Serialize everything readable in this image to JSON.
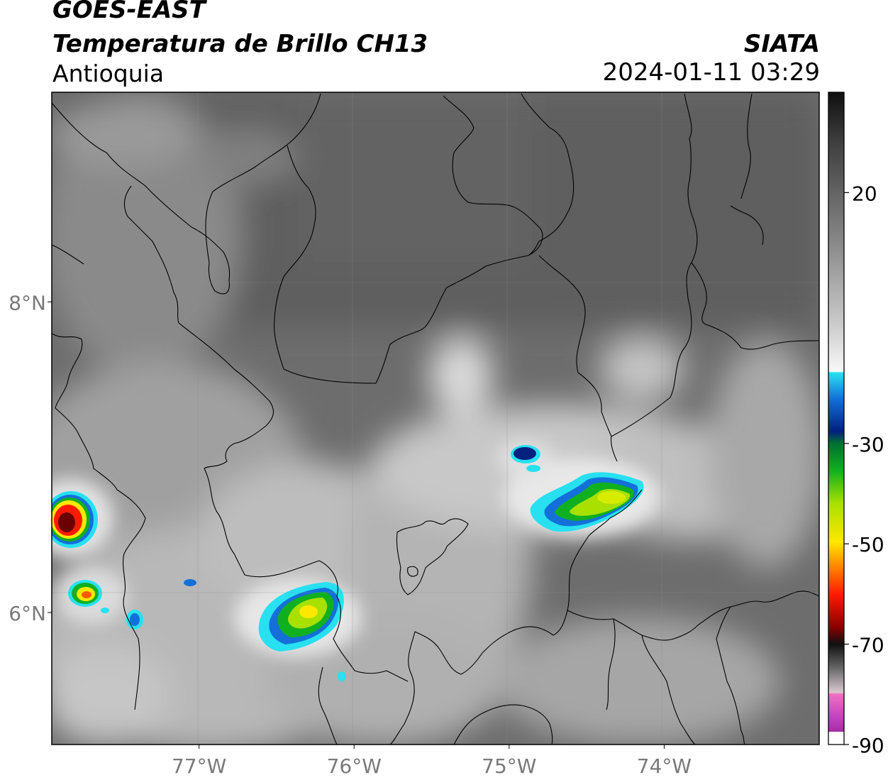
{
  "header": {
    "satellite": "GOES-EAST",
    "product": "Temperatura de Brillo CH13",
    "region": "Antioquia",
    "organization": "SIATA",
    "datetime": "2024-01-11 03:29"
  },
  "map": {
    "lat_ticks": [
      {
        "value": 8,
        "label": "8°N"
      },
      {
        "value": 6,
        "label": "6°N"
      }
    ],
    "lon_ticks": [
      {
        "value": -77,
        "label": "77°W"
      },
      {
        "value": -76,
        "label": "76°W"
      },
      {
        "value": -75,
        "label": "75°W"
      },
      {
        "value": -74,
        "label": "74°W"
      }
    ],
    "extent": {
      "lon_min": -77.95,
      "lon_max": -73.0,
      "lat_min": 5.15,
      "lat_max": 9.35
    }
  },
  "colorbar": {
    "range": [
      -90,
      40
    ],
    "ticks": [
      {
        "value": 20,
        "label": "20"
      },
      {
        "value": -30,
        "label": "-30"
      },
      {
        "value": -50,
        "label": "-50"
      },
      {
        "value": -70,
        "label": "-70"
      },
      {
        "value": -90,
        "label": "-90"
      }
    ]
  },
  "colors": {
    "grid": "#8c8c8c",
    "border": "#000000",
    "axis_label": "#7a7a7a"
  }
}
